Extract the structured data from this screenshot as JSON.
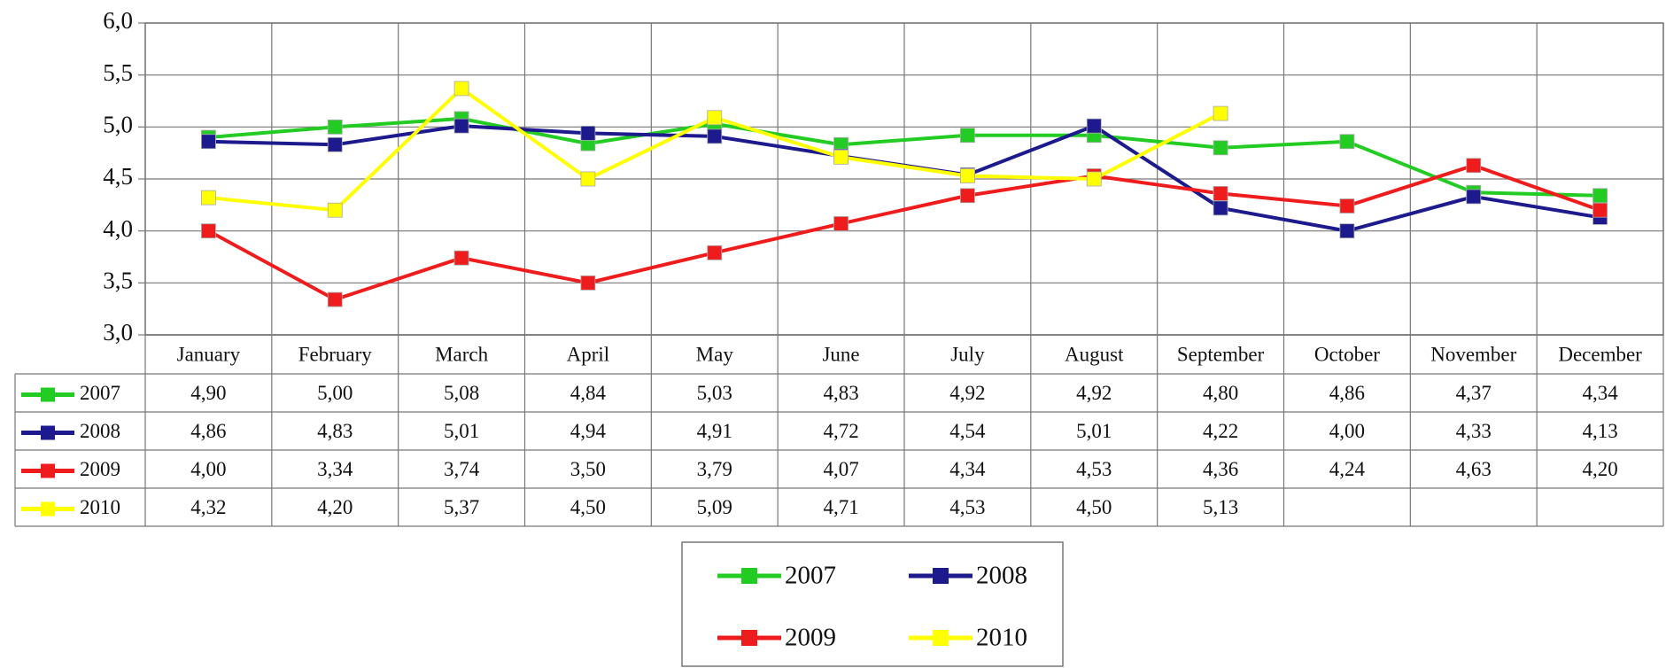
{
  "chart_data": {
    "type": "line",
    "categories": [
      "January",
      "February",
      "March",
      "April",
      "May",
      "June",
      "July",
      "August",
      "September",
      "October",
      "November",
      "December"
    ],
    "ylim": [
      3,
      6
    ],
    "yticks": [
      {
        "value": 3,
        "label": "3,0"
      },
      {
        "value": 3.5,
        "label": "3,5"
      },
      {
        "value": 4,
        "label": "4,0"
      },
      {
        "value": 4.5,
        "label": "4,5"
      },
      {
        "value": 5,
        "label": "5,0"
      },
      {
        "value": 5.5,
        "label": "5,5"
      },
      {
        "value": 6,
        "label": "6,0"
      }
    ],
    "grid": true,
    "legend": "bottom",
    "series": [
      {
        "name": "2007",
        "color": "#22cc22",
        "values": [
          4.9,
          5.0,
          5.08,
          4.84,
          5.03,
          4.83,
          4.92,
          4.92,
          4.8,
          4.86,
          4.37,
          4.34
        ],
        "value_labels": [
          "4,90",
          "5,00",
          "5,08",
          "4,84",
          "5,03",
          "4,83",
          "4,92",
          "4,92",
          "4,80",
          "4,86",
          "4,37",
          "4,34"
        ]
      },
      {
        "name": "2008",
        "color": "#1c1a8c",
        "values": [
          4.86,
          4.83,
          5.01,
          4.94,
          4.91,
          4.72,
          4.54,
          5.01,
          4.22,
          4.0,
          4.33,
          4.13
        ],
        "value_labels": [
          "4,86",
          "4,83",
          "5,01",
          "4,94",
          "4,91",
          "4,72",
          "4,54",
          "5,01",
          "4,22",
          "4,00",
          "4,33",
          "4,13"
        ]
      },
      {
        "name": "2009",
        "color": "#ee1c1c",
        "values": [
          4.0,
          3.34,
          3.74,
          3.5,
          3.79,
          4.07,
          4.34,
          4.53,
          4.36,
          4.24,
          4.63,
          4.2
        ],
        "value_labels": [
          "4,00",
          "3,34",
          "3,74",
          "3,50",
          "3,79",
          "4,07",
          "4,34",
          "4,53",
          "4,36",
          "4,24",
          "4,63",
          "4,20"
        ]
      },
      {
        "name": "2010",
        "color": "#ffff00",
        "values": [
          4.32,
          4.2,
          5.37,
          4.5,
          5.09,
          4.71,
          4.53,
          4.5,
          5.13,
          null,
          null,
          null
        ],
        "value_labels": [
          "4,32",
          "4,20",
          "5,37",
          "4,50",
          "5,09",
          "4,71",
          "4,53",
          "4,50",
          "5,13",
          null,
          null,
          null
        ]
      }
    ]
  }
}
